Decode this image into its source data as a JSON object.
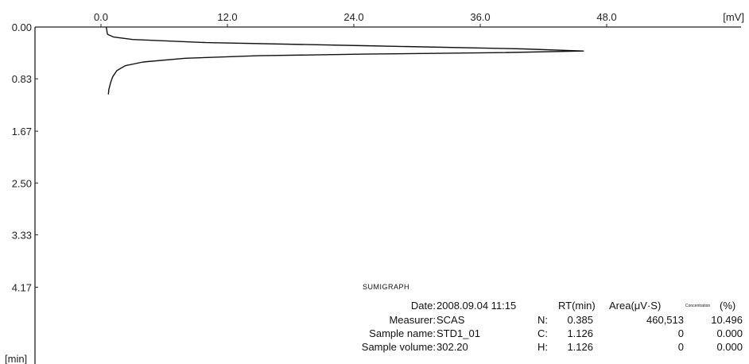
{
  "chart_data": {
    "type": "line",
    "orientation": "time-vertical",
    "x_axis": {
      "unit": "[mV]",
      "ticks": [
        "0.0",
        "12.0",
        "24.0",
        "36.0",
        "48.0"
      ],
      "range": [
        0,
        60
      ]
    },
    "y_axis": {
      "unit": "[min]",
      "ticks": [
        "0.00",
        "0.83",
        "1.67",
        "2.50",
        "3.33",
        "4.17"
      ],
      "range": [
        0,
        5.0
      ]
    },
    "series": [
      {
        "points": [
          [
            0.5,
            0.0
          ],
          [
            0.55,
            0.05
          ],
          [
            0.6,
            0.1
          ],
          [
            0.65,
            0.12
          ],
          [
            1.2,
            0.16
          ],
          [
            3.0,
            0.2
          ],
          [
            10.0,
            0.25
          ],
          [
            25.0,
            0.3
          ],
          [
            40.0,
            0.35
          ],
          [
            45.8,
            0.385
          ],
          [
            38.0,
            0.41
          ],
          [
            25.0,
            0.435
          ],
          [
            15.0,
            0.46
          ],
          [
            8.0,
            0.5
          ],
          [
            4.0,
            0.56
          ],
          [
            2.3,
            0.62
          ],
          [
            1.5,
            0.7
          ],
          [
            1.1,
            0.8
          ],
          [
            0.9,
            0.9
          ],
          [
            0.75,
            1.0
          ],
          [
            0.7,
            1.08
          ]
        ]
      }
    ]
  },
  "info": {
    "brand": "SUMIGRAPH",
    "date_label": "Date:",
    "date_value": "2008.09.04 11:15",
    "measurer_label": "Measurer:",
    "measurer_value": "SCAS",
    "sample_name_label": "Sample name:",
    "sample_name_value": "STD1_01",
    "sample_volume_label": "Sample volume:",
    "sample_volume_value": "302.20",
    "headers": {
      "rt": "RT(min)",
      "area": "Area(μV·S)",
      "conc": "Concentration",
      "pct": "(%)"
    },
    "rows": [
      {
        "el": "N:",
        "rt": "0.385",
        "area": "460,513",
        "pct": "10.496"
      },
      {
        "el": "C:",
        "rt": "1.126",
        "area": "0",
        "pct": "0.000"
      },
      {
        "el": "H:",
        "rt": "1.126",
        "area": "0",
        "pct": "0.000"
      }
    ]
  }
}
